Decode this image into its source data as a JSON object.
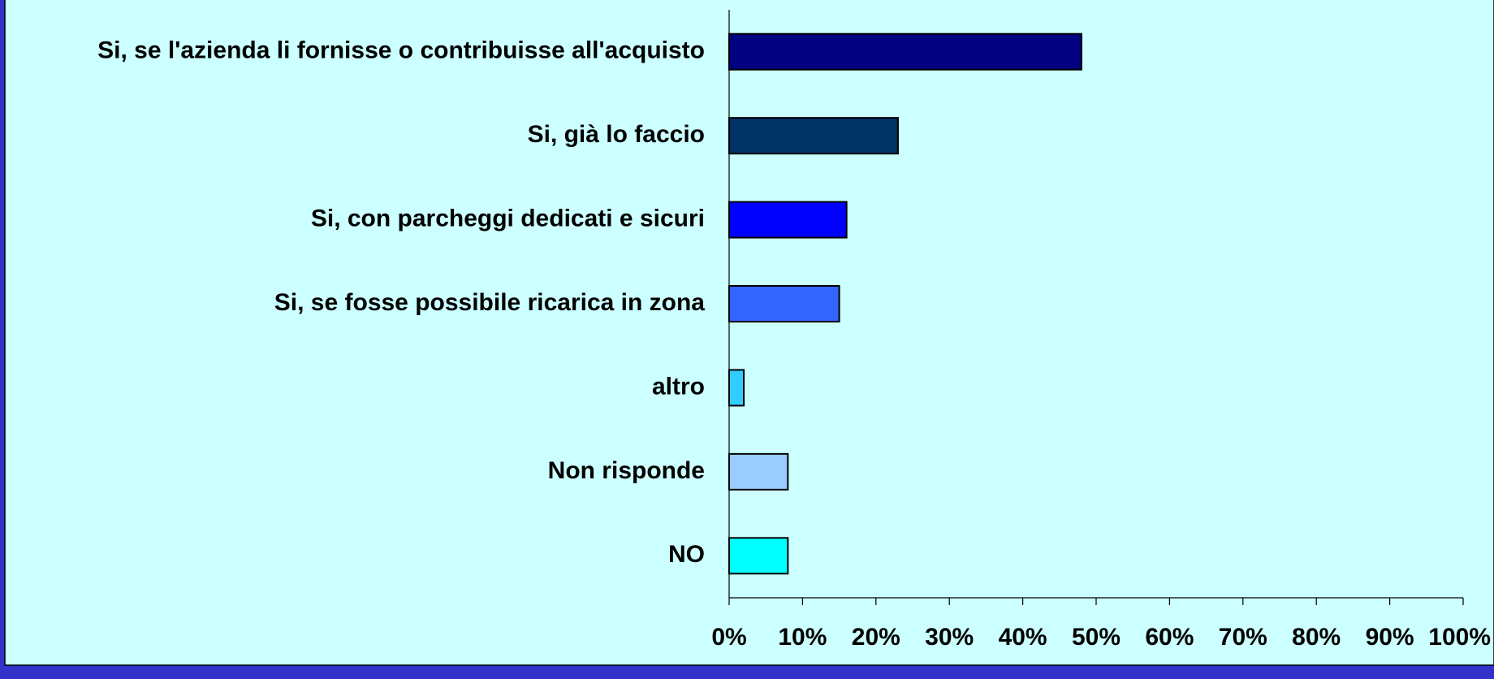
{
  "chart_data": {
    "type": "bar",
    "orientation": "horizontal",
    "categories": [
      "Si, se l'azienda li fornisse o contribuisse all'acquisto",
      "Si, già lo faccio",
      "Si, con parcheggi dedicati e sicuri",
      "Si, se fosse possibile ricarica in zona",
      "altro",
      "Non risponde",
      "NO"
    ],
    "values": [
      48,
      23,
      16,
      15,
      2,
      8,
      8
    ],
    "colors": [
      "#000080",
      "#003366",
      "#0000ff",
      "#3366ff",
      "#33ccff",
      "#99ccff",
      "#00ffff"
    ],
    "xlim": [
      0,
      100
    ],
    "xticks": [
      {
        "value": 0,
        "label": "0%"
      },
      {
        "value": 10,
        "label": "10%"
      },
      {
        "value": 20,
        "label": "20%"
      },
      {
        "value": 30,
        "label": "30%"
      },
      {
        "value": 40,
        "label": "40%"
      },
      {
        "value": 50,
        "label": "50%"
      },
      {
        "value": 60,
        "label": "60%"
      },
      {
        "value": 70,
        "label": "70%"
      },
      {
        "value": 80,
        "label": "80%"
      },
      {
        "value": 90,
        "label": "90%"
      },
      {
        "value": 100,
        "label": "100%"
      }
    ],
    "grid": false
  }
}
